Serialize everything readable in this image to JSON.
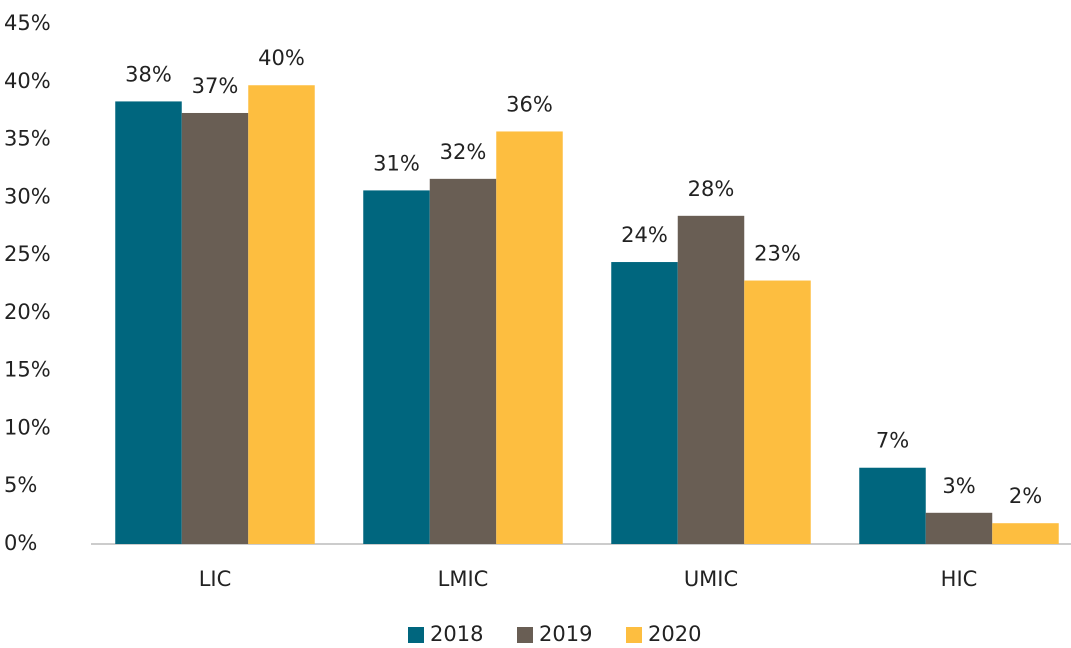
{
  "chart_data": {
    "type": "bar",
    "categories": [
      "LIC",
      "LMIC",
      "UMIC",
      "HIC"
    ],
    "series": [
      {
        "name": "2018",
        "color": "#00667e",
        "values": [
          38.3,
          30.6,
          24.4,
          6.6
        ],
        "value_labels": [
          "38%",
          "31%",
          "24%",
          "7%"
        ]
      },
      {
        "name": "2019",
        "color": "#695e54",
        "values": [
          37.3,
          31.6,
          28.4,
          2.7
        ],
        "value_labels": [
          "37%",
          "32%",
          "28%",
          "3%"
        ]
      },
      {
        "name": "2020",
        "color": "#fdbe40",
        "values": [
          39.7,
          35.7,
          22.8,
          1.8
        ],
        "value_labels": [
          "40%",
          "36%",
          "23%",
          "2%"
        ]
      }
    ],
    "ylim": [
      0,
      45
    ],
    "yticks": [
      {
        "value": 0,
        "label": "0%"
      },
      {
        "value": 5,
        "label": "5%"
      },
      {
        "value": 10,
        "label": "10%"
      },
      {
        "value": 15,
        "label": "15%"
      },
      {
        "value": 20,
        "label": "20%"
      },
      {
        "value": 25,
        "label": "25%"
      },
      {
        "value": 30,
        "label": "30%"
      },
      {
        "value": 35,
        "label": "35%"
      },
      {
        "value": 40,
        "label": "40%"
      },
      {
        "value": 45,
        "label": "45%"
      }
    ],
    "grid": false,
    "legend": "bottom"
  }
}
